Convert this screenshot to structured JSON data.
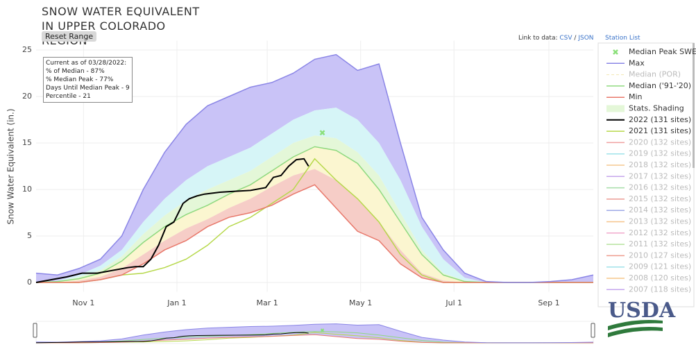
{
  "header": {
    "title": "SNOW WATER EQUIVALENT IN UPPER COLORADO REGION",
    "reset": "Reset Range",
    "link_label": "Link to data:",
    "csv": "CSV",
    "separator": "/",
    "json": "JSON",
    "station_list": "Station List",
    "logo": "USDA"
  },
  "chart_data": {
    "type": "line",
    "y_label": "Snow Water Equivalent (in.)",
    "annotation": [
      "Current as of 03/28/2022:",
      "% of Median - 87%",
      "% Median Peak - 77%",
      "Days Until Median Peak - 9",
      "Percentile - 21"
    ],
    "xlim": [
      0,
      364
    ],
    "ylim": [
      -1,
      26
    ],
    "xticks": [
      {
        "value": 31,
        "label": "Nov 1"
      },
      {
        "value": 92,
        "label": "Jan 1"
      },
      {
        "value": 151,
        "label": "Mar 1"
      },
      {
        "value": 212,
        "label": "May 1"
      },
      {
        "value": 273,
        "label": "Jul 1"
      },
      {
        "value": 335,
        "label": "Sep 1"
      }
    ],
    "yticks": [
      0,
      5,
      10,
      15,
      20,
      25
    ],
    "grid": true,
    "x": [
      0,
      14,
      28,
      42,
      56,
      70,
      84,
      98,
      112,
      126,
      140,
      154,
      168,
      182,
      196,
      210,
      224,
      238,
      252,
      266,
      280,
      294,
      308,
      322,
      336,
      350,
      364
    ],
    "series": [
      {
        "name": "Max",
        "color": "#8a85e6",
        "values": [
          1,
          0.8,
          1.5,
          2.5,
          5,
          10,
          14,
          17,
          19,
          20,
          21,
          21.5,
          22.5,
          24,
          24.5,
          22.8,
          23.5,
          15,
          7,
          3.5,
          1,
          0.1,
          0,
          0,
          0.1,
          0.3,
          0.8
        ]
      },
      {
        "name": "Median ('91-'20)",
        "color": "#8fd97f",
        "values": [
          0,
          0.1,
          0.4,
          1,
          2.3,
          4.3,
          6,
          7.3,
          8.3,
          9.5,
          10.5,
          12,
          13.5,
          14.6,
          14.2,
          12.8,
          10,
          6.5,
          3,
          0.8,
          0.1,
          0,
          0,
          0,
          0,
          0,
          0
        ]
      },
      {
        "name": "Min",
        "color": "#e8776a",
        "values": [
          0,
          0,
          0,
          0.3,
          0.8,
          2,
          3.5,
          4.5,
          6,
          7,
          7.5,
          8.3,
          9.5,
          10.5,
          8,
          5.5,
          4.5,
          2,
          0.5,
          0,
          0,
          0,
          0,
          0,
          0,
          0,
          0
        ]
      },
      {
        "name": "2022 (131 sites)",
        "color": "#000000",
        "x": [
          0,
          10,
          20,
          30,
          40,
          50,
          60,
          65,
          70,
          75,
          80,
          85,
          90,
          93,
          96,
          100,
          105,
          110,
          120,
          130,
          140,
          150,
          155,
          160,
          165,
          170,
          175,
          178
        ],
        "values": [
          0,
          0.3,
          0.6,
          1,
          1,
          1.3,
          1.6,
          1.7,
          1.7,
          2.5,
          4,
          6,
          6.5,
          7.5,
          8.5,
          9,
          9.3,
          9.5,
          9.7,
          9.8,
          9.9,
          10.2,
          11.3,
          11.5,
          12.5,
          13.2,
          13.3,
          12.5
        ]
      },
      {
        "name": "2021 (131 sites)",
        "color": "#b6d84a",
        "values": [
          0,
          0,
          0,
          0.3,
          0.8,
          1,
          1.6,
          2.5,
          4,
          6,
          7,
          8.5,
          10,
          13.3,
          11,
          9,
          6.5,
          3,
          0.8,
          0,
          0,
          0,
          0,
          0,
          0,
          0,
          0
        ]
      }
    ],
    "shading": {
      "name": "Stats. Shading",
      "colors": [
        "#c9c3f7",
        "#d6f5f7",
        "#e4f7d8",
        "#fbf6d0",
        "#f6cdc7"
      ],
      "levels": [
        [
          0,
          0.2,
          0.8,
          1.8,
          3.5,
          6.5,
          9,
          11,
          12.5,
          13.5,
          14.5,
          16,
          17.5,
          18.5,
          18.8,
          17.5,
          15,
          11,
          6,
          2.5,
          0.5,
          0,
          0,
          0,
          0,
          0,
          0
        ],
        [
          0,
          0.1,
          0.6,
          1.3,
          2.8,
          5.2,
          7.2,
          8.8,
          10,
          11,
          12,
          13.5,
          15,
          15.8,
          15.5,
          14,
          11.5,
          7.5,
          3.5,
          1,
          0.2,
          0,
          0,
          0,
          0,
          0,
          0
        ],
        [
          0,
          0,
          0.2,
          0.6,
          1.5,
          3,
          4.5,
          5.8,
          6.8,
          8,
          9,
          10.3,
          11.5,
          12.2,
          11,
          9,
          6.5,
          3.5,
          1,
          0.2,
          0,
          0,
          0,
          0,
          0,
          0,
          0
        ]
      ]
    },
    "peak": {
      "name": "Median Peak SWE",
      "x": 187,
      "value": 16.1,
      "color": "#8be07a"
    },
    "legend_only": [
      {
        "name": "Median (POR)",
        "color": "#f3e6b0"
      },
      {
        "name": "2020 (132 sites)",
        "color": "#f0a0a0"
      },
      {
        "name": "2019 (132 sites)",
        "color": "#9fe3ea"
      },
      {
        "name": "2018 (132 sites)",
        "color": "#f6c98f"
      },
      {
        "name": "2017 (132 sites)",
        "color": "#c6a6ec"
      },
      {
        "name": "2016 (132 sites)",
        "color": "#a6dea9"
      },
      {
        "name": "2015 (132 sites)",
        "color": "#ec9b94"
      },
      {
        "name": "2014 (132 sites)",
        "color": "#9ea9e6"
      },
      {
        "name": "2013 (132 sites)",
        "color": "#f6c48c"
      },
      {
        "name": "2012 (132 sites)",
        "color": "#f2a8cc"
      },
      {
        "name": "2011 (132 sites)",
        "color": "#b6e29e"
      },
      {
        "name": "2010 (127 sites)",
        "color": "#ee9c8e"
      },
      {
        "name": "2009 (121 sites)",
        "color": "#9fe2ea"
      },
      {
        "name": "2008 (120 sites)",
        "color": "#f5c68a"
      },
      {
        "name": "2007 (118 sites)",
        "color": "#c4a6ee"
      }
    ]
  }
}
